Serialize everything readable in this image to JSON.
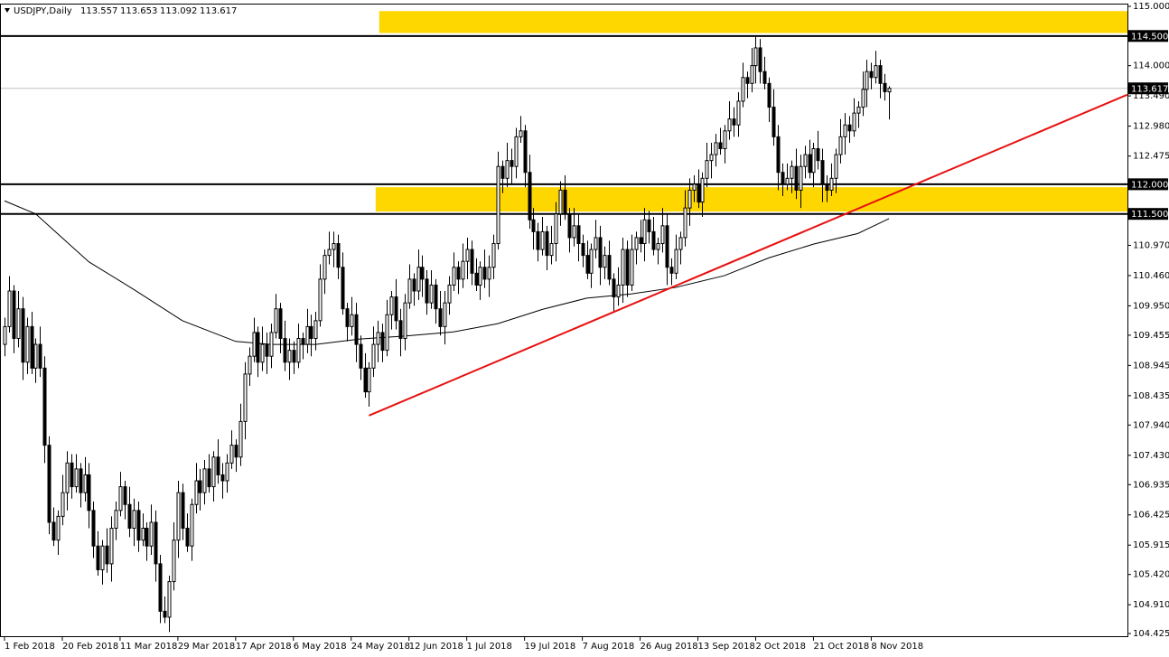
{
  "chart_data": {
    "type": "candlestick",
    "title": "USDJPY,Daily",
    "ylim": [
      104.425,
      115.0
    ],
    "yticks": [
      {
        "value": 115.0,
        "label": "115.000"
      },
      {
        "value": 114.0,
        "label": "114.000"
      },
      {
        "value": 113.49,
        "label": "113.490"
      },
      {
        "value": 112.98,
        "label": "112.980"
      },
      {
        "value": 112.475,
        "label": "112.475"
      },
      {
        "value": 110.97,
        "label": "110.970"
      },
      {
        "value": 110.46,
        "label": "110.460"
      },
      {
        "value": 109.95,
        "label": "109.950"
      },
      {
        "value": 109.455,
        "label": "109.455"
      },
      {
        "value": 108.945,
        "label": "108.945"
      },
      {
        "value": 108.435,
        "label": "108.435"
      },
      {
        "value": 107.94,
        "label": "107.940"
      },
      {
        "value": 107.43,
        "label": "107.430"
      },
      {
        "value": 106.935,
        "label": "106.935"
      },
      {
        "value": 106.425,
        "label": "106.425"
      },
      {
        "value": 105.915,
        "label": "105.915"
      },
      {
        "value": 105.42,
        "label": "105.420"
      },
      {
        "value": 104.91,
        "label": "104.910"
      },
      {
        "value": 104.425,
        "label": "104.425"
      }
    ],
    "xticks": [
      {
        "value": 0,
        "label": "1 Feb 2018"
      },
      {
        "value": 13,
        "label": "20 Feb 2018"
      },
      {
        "value": 26,
        "label": "11 Mar 2018"
      },
      {
        "value": 39,
        "label": "29 Mar 2018"
      },
      {
        "value": 52,
        "label": "17 Apr 2018"
      },
      {
        "value": 65,
        "label": "6 May 2018"
      },
      {
        "value": 78,
        "label": "24 May 2018"
      },
      {
        "value": 91,
        "label": "12 Jun 2018"
      },
      {
        "value": 104,
        "label": "1 Jul 2018"
      },
      {
        "value": 117,
        "label": "19 Jul 2018"
      },
      {
        "value": 130,
        "label": "7 Aug 2018"
      },
      {
        "value": 143,
        "label": "26 Aug 2018"
      },
      {
        "value": 156,
        "label": "13 Sep 2018"
      },
      {
        "value": 169,
        "label": "2 Oct 2018"
      },
      {
        "value": 182,
        "label": "21 Oct 2018"
      },
      {
        "value": 195,
        "label": "8 Nov 2018"
      }
    ],
    "levels": [
      {
        "value": 114.5,
        "label": "114.500"
      },
      {
        "value": 112.0,
        "label": "112.000"
      },
      {
        "value": 111.5,
        "label": "111.500"
      }
    ],
    "last_price": {
      "value": 113.617,
      "label": "113.617"
    },
    "zones": [
      {
        "from": 114.55,
        "to": 114.92,
        "start": 84.3,
        "color": "#ffd700"
      },
      {
        "from": 111.54,
        "to": 111.95,
        "start": 83.5,
        "color": "#ffd700"
      }
    ],
    "trendline": {
      "x": [
        82,
        252.6
      ],
      "values": [
        108.1,
        113.51
      ],
      "color": "#e81010"
    },
    "moving_average": {
      "x": [
        0,
        7,
        19,
        29,
        40,
        52,
        60,
        70,
        80,
        90,
        101,
        111,
        121,
        131,
        141,
        151,
        162,
        172,
        182,
        192,
        199
      ],
      "values": [
        111.72,
        111.5,
        110.69,
        110.23,
        109.7,
        109.35,
        109.3,
        109.3,
        109.39,
        109.44,
        109.51,
        109.65,
        109.89,
        110.08,
        110.15,
        110.26,
        110.46,
        110.76,
        110.99,
        111.17,
        111.42
      ],
      "color": "#000000"
    },
    "candles": [
      [
        109.3,
        109.75,
        109.1,
        109.6
      ],
      [
        109.6,
        110.45,
        109.5,
        110.2
      ],
      [
        110.2,
        110.3,
        109.15,
        109.4
      ],
      [
        109.4,
        110.2,
        109.25,
        109.9
      ],
      [
        109.9,
        110.1,
        108.7,
        109.0
      ],
      [
        109.0,
        109.75,
        108.8,
        109.6
      ],
      [
        109.6,
        109.85,
        108.8,
        108.9
      ],
      [
        108.9,
        109.4,
        108.65,
        109.3
      ],
      [
        109.3,
        109.6,
        108.75,
        108.9
      ],
      [
        108.9,
        109.1,
        107.3,
        107.6
      ],
      [
        107.6,
        107.75,
        106.1,
        106.3
      ],
      [
        106.3,
        106.55,
        105.9,
        106.0
      ],
      [
        106.0,
        106.5,
        105.75,
        106.4
      ],
      [
        106.4,
        107.1,
        106.25,
        106.8
      ],
      [
        106.8,
        107.5,
        106.5,
        107.3
      ],
      [
        107.3,
        107.45,
        106.7,
        106.9
      ],
      [
        106.9,
        107.45,
        106.8,
        107.2
      ],
      [
        107.2,
        107.3,
        106.55,
        106.8
      ],
      [
        106.8,
        107.4,
        106.65,
        107.1
      ],
      [
        107.1,
        107.3,
        106.2,
        106.5
      ],
      [
        106.5,
        106.65,
        105.7,
        105.9
      ],
      [
        105.9,
        106.15,
        105.4,
        105.5
      ],
      [
        105.5,
        106.0,
        105.25,
        105.9
      ],
      [
        105.9,
        106.2,
        105.45,
        105.6
      ],
      [
        105.6,
        106.4,
        105.3,
        106.2
      ],
      [
        106.2,
        106.65,
        106.0,
        106.5
      ],
      [
        106.5,
        107.15,
        106.4,
        106.9
      ],
      [
        106.9,
        107.0,
        106.35,
        106.6
      ],
      [
        106.6,
        106.9,
        106.05,
        106.2
      ],
      [
        106.2,
        106.7,
        105.9,
        106.5
      ],
      [
        106.5,
        106.65,
        105.8,
        106.0
      ],
      [
        106.0,
        106.45,
        105.9,
        106.2
      ],
      [
        106.2,
        106.3,
        105.65,
        105.9
      ],
      [
        105.9,
        106.6,
        105.75,
        106.3
      ],
      [
        106.3,
        106.5,
        105.3,
        105.6
      ],
      [
        105.6,
        105.75,
        104.6,
        104.8
      ],
      [
        104.8,
        105.05,
        104.6,
        104.7
      ],
      [
        104.7,
        105.4,
        104.45,
        105.3
      ],
      [
        105.3,
        106.3,
        105.15,
        106.0
      ],
      [
        106.0,
        107.0,
        105.7,
        106.8
      ],
      [
        106.8,
        106.95,
        106.0,
        106.2
      ],
      [
        106.2,
        106.45,
        105.8,
        105.9
      ],
      [
        105.9,
        106.7,
        105.65,
        106.6
      ],
      [
        106.6,
        107.3,
        106.45,
        107.0
      ],
      [
        107.0,
        107.2,
        106.5,
        106.8
      ],
      [
        106.8,
        107.35,
        106.6,
        107.2
      ],
      [
        107.2,
        107.45,
        106.8,
        106.9
      ],
      [
        106.9,
        107.5,
        106.65,
        107.4
      ],
      [
        107.4,
        107.7,
        106.95,
        107.1
      ],
      [
        107.1,
        107.3,
        106.7,
        107.0
      ],
      [
        107.0,
        107.45,
        106.8,
        107.3
      ],
      [
        107.3,
        107.85,
        107.2,
        107.6
      ],
      [
        107.6,
        107.7,
        107.15,
        107.4
      ],
      [
        107.4,
        108.3,
        107.25,
        108.0
      ],
      [
        108.0,
        109.0,
        107.7,
        108.8
      ],
      [
        108.8,
        109.25,
        108.6,
        109.1
      ],
      [
        109.1,
        109.75,
        109.0,
        109.5
      ],
      [
        109.5,
        109.6,
        108.75,
        109.0
      ],
      [
        109.0,
        109.6,
        108.85,
        109.3
      ],
      [
        109.3,
        109.5,
        108.8,
        109.1
      ],
      [
        109.1,
        109.65,
        108.9,
        109.5
      ],
      [
        109.5,
        110.15,
        109.4,
        109.9
      ],
      [
        109.9,
        110.0,
        109.15,
        109.4
      ],
      [
        109.4,
        109.7,
        108.85,
        109.0
      ],
      [
        109.0,
        109.4,
        108.7,
        109.2
      ],
      [
        109.2,
        109.35,
        108.8,
        109.0
      ],
      [
        109.0,
        109.65,
        108.9,
        109.4
      ],
      [
        109.4,
        109.5,
        109.05,
        109.3
      ],
      [
        109.3,
        109.9,
        109.15,
        109.6
      ],
      [
        109.6,
        109.8,
        109.1,
        109.4
      ],
      [
        109.4,
        109.85,
        109.2,
        109.7
      ],
      [
        109.7,
        110.65,
        109.6,
        110.4
      ],
      [
        110.4,
        110.9,
        110.15,
        110.8
      ],
      [
        110.8,
        111.2,
        110.65,
        110.9
      ],
      [
        110.9,
        111.2,
        110.6,
        111.0
      ],
      [
        111.0,
        111.15,
        110.4,
        110.6
      ],
      [
        110.6,
        110.85,
        109.8,
        109.9
      ],
      [
        109.9,
        110.0,
        109.35,
        109.6
      ],
      [
        109.6,
        110.1,
        109.45,
        109.8
      ],
      [
        109.8,
        110.0,
        109.0,
        109.3
      ],
      [
        109.3,
        109.45,
        108.7,
        108.9
      ],
      [
        108.9,
        109.15,
        108.4,
        108.5
      ],
      [
        108.5,
        109.0,
        108.25,
        108.9
      ],
      [
        108.9,
        109.6,
        108.75,
        109.3
      ],
      [
        109.3,
        109.7,
        109.0,
        109.5
      ],
      [
        109.5,
        109.65,
        109.0,
        109.2
      ],
      [
        109.2,
        110.05,
        109.1,
        109.8
      ],
      [
        109.8,
        110.2,
        109.55,
        110.1
      ],
      [
        110.1,
        110.4,
        109.55,
        109.7
      ],
      [
        109.7,
        109.9,
        109.1,
        109.4
      ],
      [
        109.4,
        110.15,
        109.2,
        110.0
      ],
      [
        110.0,
        110.65,
        109.9,
        110.4
      ],
      [
        110.4,
        110.5,
        109.95,
        110.2
      ],
      [
        110.2,
        110.9,
        110.05,
        110.6
      ],
      [
        110.6,
        110.8,
        110.1,
        110.4
      ],
      [
        110.4,
        110.55,
        109.8,
        110.0
      ],
      [
        110.0,
        110.55,
        109.9,
        110.3
      ],
      [
        110.3,
        110.4,
        109.65,
        109.9
      ],
      [
        109.9,
        110.2,
        109.45,
        109.6
      ],
      [
        109.6,
        110.2,
        109.3,
        110.0
      ],
      [
        110.0,
        110.45,
        109.8,
        110.3
      ],
      [
        110.3,
        110.85,
        110.2,
        110.6
      ],
      [
        110.6,
        110.7,
        110.15,
        110.4
      ],
      [
        110.4,
        111.0,
        110.25,
        110.7
      ],
      [
        110.7,
        111.1,
        110.4,
        110.9
      ],
      [
        110.9,
        111.05,
        110.3,
        110.5
      ],
      [
        110.5,
        110.75,
        110.2,
        110.3
      ],
      [
        110.3,
        110.7,
        110.05,
        110.6
      ],
      [
        110.6,
        110.9,
        110.25,
        110.4
      ],
      [
        110.4,
        110.8,
        110.1,
        110.6
      ],
      [
        110.6,
        111.15,
        110.4,
        111.0
      ],
      [
        111.0,
        112.55,
        110.9,
        112.3
      ],
      [
        112.3,
        112.4,
        111.85,
        112.1
      ],
      [
        112.1,
        112.7,
        111.95,
        112.4
      ],
      [
        112.4,
        112.6,
        112.0,
        112.3
      ],
      [
        112.3,
        112.95,
        112.1,
        112.8
      ],
      [
        112.8,
        113.15,
        112.7,
        112.9
      ],
      [
        112.9,
        113.0,
        111.95,
        112.2
      ],
      [
        112.2,
        112.5,
        111.25,
        111.4
      ],
      [
        111.4,
        111.6,
        110.9,
        111.2
      ],
      [
        111.2,
        111.35,
        110.7,
        110.9
      ],
      [
        110.9,
        111.45,
        110.8,
        111.2
      ],
      [
        111.2,
        111.3,
        110.55,
        110.8
      ],
      [
        110.8,
        111.3,
        110.65,
        111.0
      ],
      [
        111.0,
        111.7,
        110.7,
        111.5
      ],
      [
        111.5,
        112.05,
        111.3,
        111.9
      ],
      [
        111.9,
        112.15,
        111.4,
        111.5
      ],
      [
        111.5,
        111.6,
        110.85,
        111.1
      ],
      [
        111.1,
        111.6,
        110.95,
        111.3
      ],
      [
        111.3,
        111.5,
        110.7,
        111.0
      ],
      [
        111.0,
        111.15,
        110.6,
        110.8
      ],
      [
        110.8,
        111.05,
        110.4,
        110.5
      ],
      [
        110.5,
        111.0,
        110.25,
        110.9
      ],
      [
        110.9,
        111.4,
        110.75,
        111.1
      ],
      [
        111.1,
        111.3,
        110.3,
        110.6
      ],
      [
        110.6,
        110.95,
        110.4,
        110.8
      ],
      [
        110.8,
        111.05,
        110.3,
        110.4
      ],
      [
        110.4,
        110.5,
        109.85,
        110.1
      ],
      [
        110.1,
        110.6,
        109.95,
        110.3
      ],
      [
        110.3,
        111.1,
        110.0,
        110.9
      ],
      [
        110.9,
        111.05,
        110.1,
        110.3
      ],
      [
        110.3,
        111.15,
        110.2,
        110.9
      ],
      [
        110.9,
        111.2,
        110.65,
        111.1
      ],
      [
        111.1,
        111.4,
        110.85,
        111.0
      ],
      [
        111.0,
        111.6,
        110.7,
        111.4
      ],
      [
        111.4,
        111.55,
        111.0,
        111.2
      ],
      [
        111.2,
        111.45,
        110.8,
        110.9
      ],
      [
        110.9,
        111.1,
        110.65,
        111.0
      ],
      [
        111.0,
        111.6,
        110.85,
        111.3
      ],
      [
        111.3,
        111.5,
        110.3,
        110.6
      ],
      [
        110.6,
        110.75,
        110.3,
        110.5
      ],
      [
        110.5,
        111.15,
        110.4,
        110.9
      ],
      [
        110.9,
        111.2,
        110.65,
        111.1
      ],
      [
        111.1,
        111.9,
        110.95,
        111.6
      ],
      [
        111.6,
        112.1,
        111.3,
        111.9
      ],
      [
        111.9,
        112.15,
        111.7,
        112.0
      ],
      [
        112.0,
        112.25,
        111.6,
        111.7
      ],
      [
        111.7,
        112.2,
        111.45,
        112.1
      ],
      [
        112.1,
        112.7,
        111.95,
        112.4
      ],
      [
        112.4,
        112.7,
        112.1,
        112.5
      ],
      [
        112.5,
        112.85,
        112.3,
        112.7
      ],
      [
        112.7,
        112.95,
        112.5,
        112.6
      ],
      [
        112.6,
        113.0,
        112.35,
        112.9
      ],
      [
        112.9,
        113.4,
        112.75,
        113.1
      ],
      [
        113.1,
        113.3,
        112.8,
        113.0
      ],
      [
        113.0,
        113.55,
        112.8,
        113.4
      ],
      [
        113.4,
        114.05,
        113.3,
        113.8
      ],
      [
        113.8,
        113.9,
        113.45,
        113.7
      ],
      [
        113.7,
        114.3,
        113.55,
        114.0
      ],
      [
        114.0,
        114.5,
        113.7,
        114.3
      ],
      [
        114.3,
        114.45,
        113.7,
        113.9
      ],
      [
        113.9,
        114.15,
        113.6,
        113.7
      ],
      [
        113.7,
        113.8,
        113.05,
        113.3
      ],
      [
        113.3,
        113.6,
        112.65,
        112.8
      ],
      [
        112.8,
        113.0,
        111.9,
        112.2
      ],
      [
        112.2,
        112.35,
        111.8,
        112.0
      ],
      [
        112.0,
        112.35,
        111.9,
        112.1
      ],
      [
        112.1,
        112.4,
        111.85,
        112.3
      ],
      [
        112.3,
        112.6,
        111.75,
        111.9
      ],
      [
        111.9,
        112.5,
        111.6,
        112.3
      ],
      [
        112.3,
        112.65,
        112.1,
        112.5
      ],
      [
        112.5,
        112.75,
        112.1,
        112.2
      ],
      [
        112.2,
        112.7,
        111.95,
        112.6
      ],
      [
        112.6,
        112.9,
        112.25,
        112.4
      ],
      [
        112.4,
        112.6,
        111.7,
        112.0
      ],
      [
        112.0,
        112.15,
        111.7,
        111.9
      ],
      [
        111.9,
        112.35,
        111.8,
        112.1
      ],
      [
        112.1,
        112.6,
        111.85,
        112.5
      ],
      [
        112.5,
        113.1,
        112.35,
        112.8
      ],
      [
        112.8,
        113.2,
        112.5,
        113.0
      ],
      [
        113.0,
        113.15,
        112.7,
        112.9
      ],
      [
        112.9,
        113.45,
        112.8,
        113.2
      ],
      [
        113.2,
        113.4,
        112.95,
        113.3
      ],
      [
        113.3,
        113.9,
        113.15,
        113.6
      ],
      [
        113.6,
        114.1,
        113.3,
        113.9
      ],
      [
        113.9,
        114.05,
        113.6,
        113.8
      ],
      [
        113.8,
        114.25,
        113.7,
        114.0
      ],
      [
        114.0,
        114.1,
        113.45,
        113.7
      ],
      [
        113.7,
        113.86,
        113.41,
        113.56
      ],
      [
        113.557,
        113.653,
        113.092,
        113.617
      ]
    ]
  }
}
